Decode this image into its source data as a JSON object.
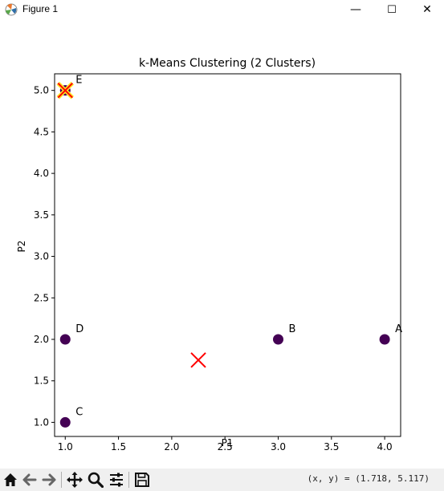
{
  "window": {
    "title": "Figure 1",
    "minimize_label": "—",
    "maximize_label": "☐",
    "close_label": "✕"
  },
  "toolbar": {
    "buttons": [
      "home-icon",
      "back-icon",
      "forward-icon",
      "pan-icon",
      "zoom-icon",
      "configure-subplots-icon",
      "save-icon"
    ],
    "coords_readout": "(x, y) = (1.718, 5.117)"
  },
  "colors": {
    "point": "#440154",
    "centroid": "#ff0000",
    "centroid_highlight": "#fde725"
  },
  "chart_data": {
    "type": "scatter",
    "title": "k-Means Clustering (2 Clusters)",
    "xlabel": "P1",
    "ylabel": "P2",
    "xlim": [
      0.9,
      4.15
    ],
    "ylim": [
      0.83,
      5.2
    ],
    "xticks": [
      1.0,
      1.5,
      2.0,
      2.5,
      3.0,
      3.5,
      4.0
    ],
    "xtick_labels": [
      "1.0",
      "1.5",
      "2.0",
      "2.5",
      "3.0",
      "3.5",
      "4.0"
    ],
    "yticks": [
      1.0,
      1.5,
      2.0,
      2.5,
      3.0,
      3.5,
      4.0,
      4.5,
      5.0
    ],
    "ytick_labels": [
      "1.0",
      "1.5",
      "2.0",
      "2.5",
      "3.0",
      "3.5",
      "4.0",
      "4.5",
      "5.0"
    ],
    "grid": false,
    "points": [
      {
        "label": "A",
        "x": 4,
        "y": 2
      },
      {
        "label": "B",
        "x": 3,
        "y": 2
      },
      {
        "label": "C",
        "x": 1,
        "y": 1
      },
      {
        "label": "D",
        "x": 1,
        "y": 2
      },
      {
        "label": "E",
        "x": 1,
        "y": 5
      }
    ],
    "centroids": [
      {
        "x": 2.25,
        "y": 1.75
      },
      {
        "x": 1,
        "y": 5
      }
    ]
  }
}
